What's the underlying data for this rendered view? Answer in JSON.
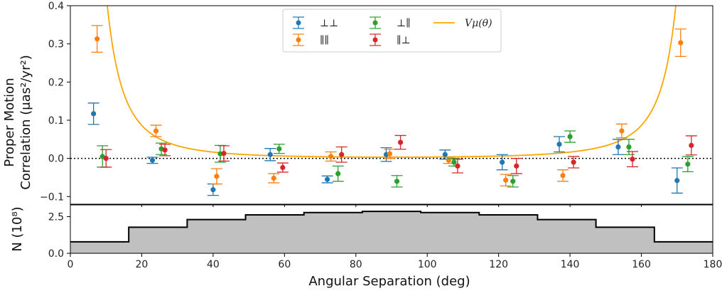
{
  "chart_data": [
    {
      "type": "scatter",
      "ylabel_line1": "Proper Motion",
      "ylabel_line2": "Correlation (μas²/yr²)",
      "xlim": [
        0,
        180
      ],
      "ylim": [
        -0.12,
        0.4
      ],
      "yticks": [
        -0.1,
        0.0,
        0.1,
        0.2,
        0.3,
        0.4
      ],
      "ytick_labels": [
        "−0.1",
        "0.0",
        "0.1",
        "0.2",
        "0.3",
        "0.4"
      ],
      "zero_line": true,
      "grid": false,
      "legend_placement": "top-center",
      "series": [
        {
          "name": "⊥⊥",
          "color": "#1f77b4",
          "x": [
            6.5,
            23,
            40,
            56,
            72,
            88.5,
            105,
            121,
            137,
            153.5,
            170
          ],
          "y": [
            0.117,
            -0.005,
            -0.082,
            0.01,
            -0.055,
            0.01,
            0.01,
            -0.01,
            0.037,
            0.03,
            -0.058
          ],
          "err": [
            0.028,
            0.008,
            0.015,
            0.016,
            0.009,
            0.018,
            0.012,
            0.02,
            0.02,
            0.02,
            0.033
          ]
        },
        {
          "name": "∥∥",
          "color": "#ff7f0e",
          "x": [
            7.5,
            24,
            41,
            57,
            73,
            89.5,
            106,
            122,
            138,
            154.5,
            171
          ],
          "y": [
            0.313,
            0.072,
            -0.047,
            -0.052,
            0.005,
            0.012,
            -0.005,
            -0.057,
            -0.045,
            0.072,
            0.303
          ],
          "err": [
            0.035,
            0.015,
            0.02,
            0.012,
            0.012,
            0.012,
            0.008,
            0.015,
            0.015,
            0.018,
            0.036
          ]
        },
        {
          "name": "⊥∥",
          "color": "#2ca02c",
          "x": [
            9,
            25.5,
            42,
            58.5,
            75,
            91.5,
            107.5,
            124,
            140,
            156.5,
            173
          ],
          "y": [
            0.005,
            0.025,
            0.012,
            0.025,
            -0.04,
            -0.06,
            -0.01,
            -0.06,
            0.057,
            0.03,
            -0.015
          ],
          "err": [
            0.028,
            0.015,
            0.022,
            0.012,
            0.02,
            0.015,
            0.01,
            0.015,
            0.015,
            0.02,
            0.02
          ]
        },
        {
          "name": "∥⊥",
          "color": "#d62728",
          "x": [
            10,
            26.5,
            43,
            59.5,
            76,
            92.5,
            108.5,
            125,
            141,
            157.5,
            174
          ],
          "y": [
            0.0,
            0.022,
            0.013,
            -0.024,
            0.01,
            0.042,
            -0.02,
            -0.02,
            -0.01,
            -0.002,
            0.034
          ],
          "err": [
            0.023,
            0.015,
            0.02,
            0.012,
            0.02,
            0.018,
            0.018,
            0.02,
            0.015,
            0.02,
            0.025
          ]
        }
      ],
      "curve": {
        "name": "Vμ(θ)",
        "color": "#ffa500"
      }
    },
    {
      "type": "area",
      "ylabel": "N (10⁸)",
      "xlabel": "Angular Separation (deg)",
      "xlim": [
        0,
        180
      ],
      "ylim": [
        0,
        3.3
      ],
      "xticks": [
        0,
        20,
        40,
        60,
        80,
        100,
        120,
        140,
        160,
        180
      ],
      "xtick_labels": [
        "0",
        "20",
        "40",
        "60",
        "80",
        "100",
        "120",
        "140",
        "160",
        "180"
      ],
      "yticks": [
        0,
        2.5
      ],
      "ytick_labels": [
        "0.0",
        "2.5"
      ],
      "bin_edges": [
        0,
        16.36,
        32.73,
        49.09,
        65.45,
        81.82,
        98.18,
        114.55,
        130.91,
        147.27,
        163.64,
        180
      ],
      "counts": [
        0.78,
        1.78,
        2.3,
        2.62,
        2.78,
        2.86,
        2.78,
        2.62,
        2.3,
        1.78,
        0.78
      ],
      "fill_color": "#c0c0c0",
      "line_color": "#000000"
    }
  ]
}
